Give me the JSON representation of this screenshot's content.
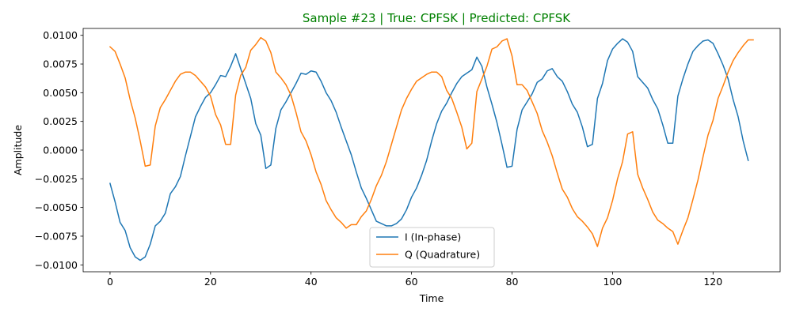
{
  "chart_data": {
    "type": "line",
    "title": "Sample #23 | True: CPFSK | Predicted: CPFSK",
    "title_color": "#008000",
    "xlabel": "Time",
    "ylabel": "Amplitude",
    "xlim": [
      -5.35,
      133.35
    ],
    "ylim": [
      -0.0106,
      0.0106
    ],
    "xticks": [
      0,
      20,
      40,
      60,
      80,
      100,
      120
    ],
    "xtick_labels": [
      "0",
      "20",
      "40",
      "60",
      "80",
      "100",
      "120"
    ],
    "yticks": [
      -0.01,
      -0.0075,
      -0.005,
      -0.0025,
      0,
      0.0025,
      0.005,
      0.0075,
      0.01
    ],
    "ytick_labels": [
      "−0.0100",
      "−0.0075",
      "−0.0050",
      "−0.0025",
      "0.0000",
      "0.0025",
      "0.0050",
      "0.0075",
      "0.0100"
    ],
    "grid": false,
    "legend_position": "lower center",
    "series": [
      {
        "name": "I (In-phase)",
        "color": "#1f77b4",
        "values": [
          -0.0029,
          -0.0045,
          -0.0063,
          -0.007,
          -0.0085,
          -0.0093,
          -0.0096,
          -0.0093,
          -0.0082,
          -0.0066,
          -0.0062,
          -0.0055,
          -0.0038,
          -0.0032,
          -0.0023,
          -0.0005,
          0.0012,
          0.0029,
          0.0038,
          0.0046,
          0.005,
          0.0057,
          0.0065,
          0.0064,
          0.0073,
          0.0084,
          0.0071,
          0.0058,
          0.0045,
          0.0023,
          0.0013,
          -0.0016,
          -0.0013,
          0.0019,
          0.0035,
          0.0042,
          0.005,
          0.0058,
          0.0067,
          0.0066,
          0.0069,
          0.0068,
          0.006,
          0.005,
          0.0043,
          0.0033,
          0.002,
          0.0008,
          -0.0004,
          -0.0019,
          -0.0033,
          -0.0042,
          -0.0052,
          -0.0062,
          -0.0064,
          -0.0066,
          -0.0066,
          -0.0064,
          -0.006,
          -0.0052,
          -0.0041,
          -0.0033,
          -0.0022,
          -0.0009,
          0.0008,
          0.0023,
          0.0034,
          0.0041,
          0.005,
          0.0058,
          0.0064,
          0.0067,
          0.007,
          0.0081,
          0.0073,
          0.0055,
          0.004,
          0.0024,
          0.0005,
          -0.0015,
          -0.0014,
          0.0018,
          0.0035,
          0.0042,
          0.0049,
          0.0059,
          0.0062,
          0.0069,
          0.0071,
          0.0064,
          0.006,
          0.0051,
          0.004,
          0.0033,
          0.002,
          0.0003,
          0.0005,
          0.0045,
          0.0058,
          0.0078,
          0.0088,
          0.0093,
          0.0097,
          0.0094,
          0.0086,
          0.0064,
          0.0059,
          0.0054,
          0.0044,
          0.0036,
          0.0022,
          0.0006,
          0.0006,
          0.0047,
          0.0062,
          0.0075,
          0.0086,
          0.0091,
          0.0095,
          0.0096,
          0.0093,
          0.0084,
          0.0074,
          0.0062,
          0.0044,
          0.0029,
          0.0008,
          -0.0009
        ]
      },
      {
        "name": "Q (Quadrature)",
        "color": "#ff7f0e",
        "values": [
          0.009,
          0.0086,
          0.0075,
          0.0063,
          0.0044,
          0.0028,
          0.0008,
          -0.0014,
          -0.0013,
          0.0021,
          0.0037,
          0.0044,
          0.0052,
          0.006,
          0.0066,
          0.0068,
          0.0068,
          0.0065,
          0.006,
          0.0055,
          0.0047,
          0.0031,
          0.0022,
          0.0005,
          0.0005,
          0.0048,
          0.0065,
          0.0072,
          0.0087,
          0.0092,
          0.0098,
          0.0095,
          0.0085,
          0.0068,
          0.0063,
          0.0057,
          0.0048,
          0.0033,
          0.0016,
          0.0008,
          -0.0004,
          -0.0019,
          -0.003,
          -0.0044,
          -0.0052,
          -0.0059,
          -0.0063,
          -0.0068,
          -0.0065,
          -0.0065,
          -0.0058,
          -0.0053,
          -0.0043,
          -0.0031,
          -0.0022,
          -0.001,
          0.0005,
          0.002,
          0.0035,
          0.0045,
          0.0053,
          0.006,
          0.0063,
          0.0066,
          0.0068,
          0.0068,
          0.0064,
          0.0052,
          0.0045,
          0.0033,
          0.002,
          0.0001,
          0.0006,
          0.0051,
          0.0062,
          0.0073,
          0.0088,
          0.009,
          0.0095,
          0.0097,
          0.0082,
          0.0057,
          0.0057,
          0.0052,
          0.0042,
          0.0032,
          0.0017,
          0.0007,
          -0.0005,
          -0.002,
          -0.0034,
          -0.0041,
          -0.0051,
          -0.0058,
          -0.0062,
          -0.0067,
          -0.0073,
          -0.0084,
          -0.0068,
          -0.0059,
          -0.0044,
          -0.0025,
          -0.001,
          0.0014,
          0.0016,
          -0.0021,
          -0.0033,
          -0.0043,
          -0.0054,
          -0.0061,
          -0.0064,
          -0.0068,
          -0.0071,
          -0.0082,
          -0.007,
          -0.0059,
          -0.0043,
          -0.0026,
          -0.0006,
          0.0013,
          0.0026,
          0.0045,
          0.0056,
          0.0068,
          0.0078,
          0.0085,
          0.0091,
          0.0096,
          0.0096
        ]
      }
    ]
  }
}
